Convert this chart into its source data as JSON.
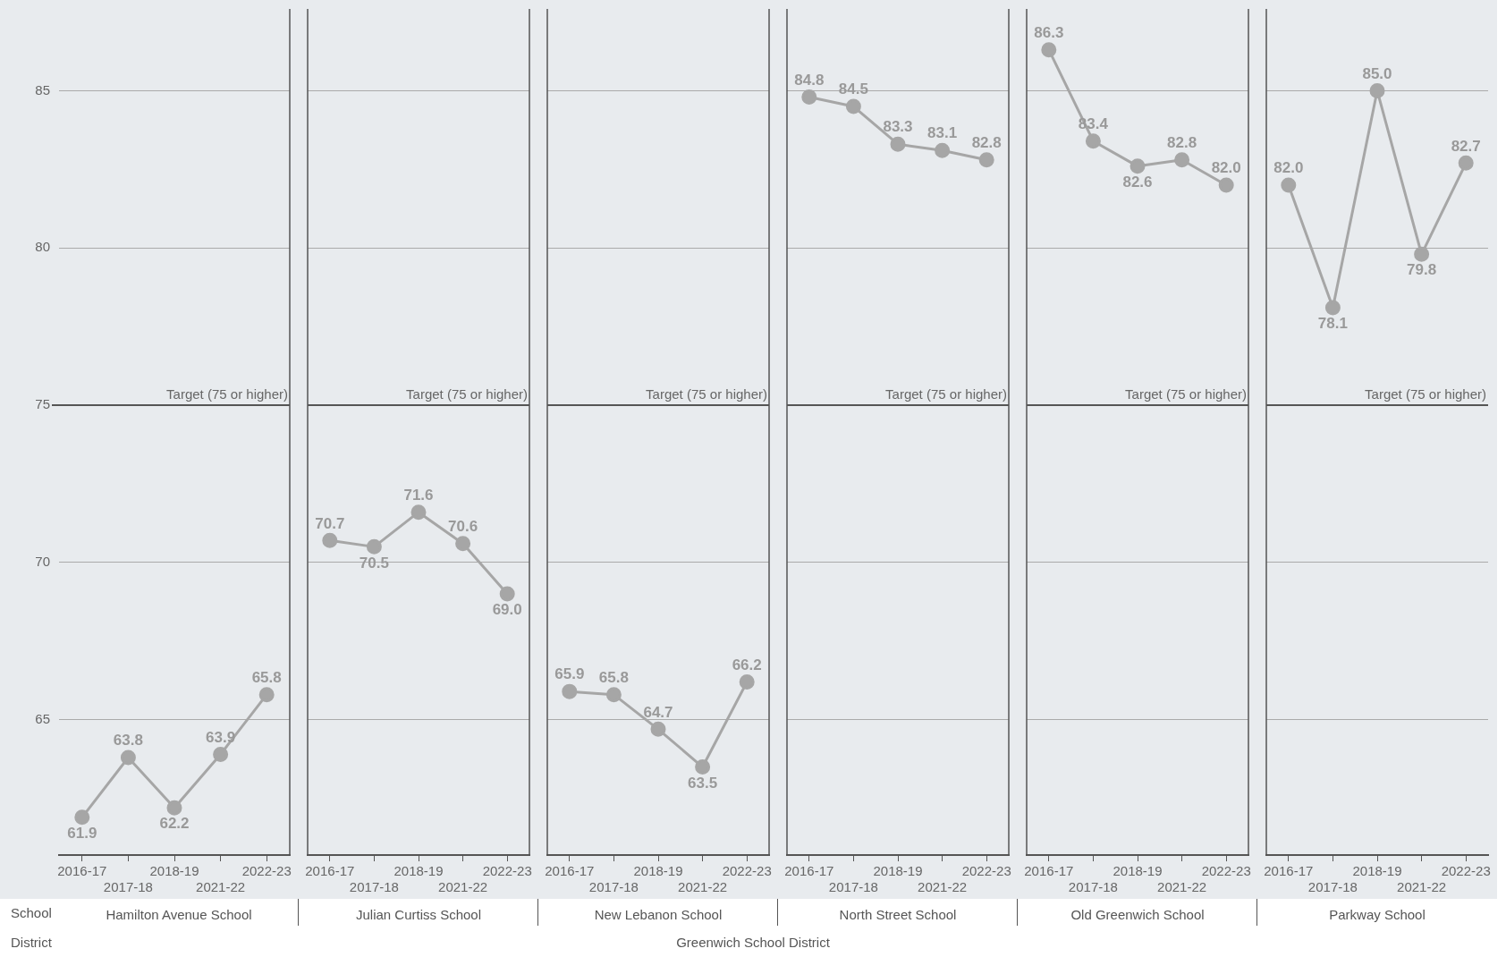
{
  "chart_data": [
    {
      "type": "line",
      "xlabel": "Hamilton Avenue School",
      "categories": [
        "2016-17",
        "2017-18",
        "2018-19",
        "2021-22",
        "2022-23"
      ],
      "series": [
        {
          "color": "#a6a6a6",
          "values": [
            61.9,
            63.8,
            62.2,
            63.9,
            65.8
          ],
          "value_labels": [
            "61.9",
            "63.8",
            "62.2",
            "63.9",
            "65.8"
          ]
        }
      ],
      "ylim": [
        60.7,
        87.6
      ],
      "yticks": [
        65,
        70,
        75,
        80,
        85
      ],
      "ref_lines": [
        {
          "axis": "y",
          "value": 75,
          "label": "Target (75 or higher)"
        }
      ],
      "grid": "y",
      "marker": "circle",
      "tick_labels": "xy",
      "annotations": [
        "School",
        "District",
        "Greenwich School District"
      ]
    },
    {
      "type": "line",
      "xlabel": "Julian Curtiss School",
      "categories": [
        "2016-17",
        "2017-18",
        "2018-19",
        "2021-22",
        "2022-23"
      ],
      "series": [
        {
          "color": "#a6a6a6",
          "values": [
            70.7,
            70.5,
            71.6,
            70.6,
            69.0
          ],
          "value_labels": [
            "70.7",
            "70.5",
            "71.6",
            "70.6",
            "69.0"
          ]
        }
      ],
      "ylim": [
        60.7,
        87.6
      ],
      "yticks": [
        65,
        70,
        75,
        80,
        85
      ],
      "ref_lines": [
        {
          "axis": "y",
          "value": 75,
          "label": "Target (75 or higher)"
        }
      ],
      "grid": "y",
      "marker": "circle",
      "tick_labels": "x"
    },
    {
      "type": "line",
      "xlabel": "New Lebanon School",
      "categories": [
        "2016-17",
        "2017-18",
        "2018-19",
        "2021-22",
        "2022-23"
      ],
      "series": [
        {
          "color": "#a6a6a6",
          "values": [
            65.9,
            65.8,
            64.7,
            63.5,
            66.2
          ],
          "value_labels": [
            "65.9",
            "65.8",
            "64.7",
            "63.5",
            "66.2"
          ]
        }
      ],
      "ylim": [
        60.7,
        87.6
      ],
      "yticks": [
        65,
        70,
        75,
        80,
        85
      ],
      "ref_lines": [
        {
          "axis": "y",
          "value": 75,
          "label": "Target (75 or higher)"
        }
      ],
      "grid": "y",
      "marker": "circle",
      "tick_labels": "x"
    },
    {
      "type": "line",
      "xlabel": "North Street School",
      "categories": [
        "2016-17",
        "2017-18",
        "2018-19",
        "2021-22",
        "2022-23"
      ],
      "series": [
        {
          "color": "#a6a6a6",
          "values": [
            84.8,
            84.5,
            83.3,
            83.1,
            82.8
          ],
          "value_labels": [
            "84.8",
            "84.5",
            "83.3",
            "83.1",
            "82.8"
          ]
        }
      ],
      "ylim": [
        60.7,
        87.6
      ],
      "yticks": [
        65,
        70,
        75,
        80,
        85
      ],
      "ref_lines": [
        {
          "axis": "y",
          "value": 75,
          "label": "Target (75 or higher)"
        }
      ],
      "grid": "y",
      "marker": "circle",
      "tick_labels": "x"
    },
    {
      "type": "line",
      "xlabel": "Old Greenwich School",
      "categories": [
        "2016-17",
        "2017-18",
        "2018-19",
        "2021-22",
        "2022-23"
      ],
      "series": [
        {
          "color": "#a6a6a6",
          "values": [
            86.3,
            83.4,
            82.6,
            82.8,
            82.0
          ],
          "value_labels": [
            "86.3",
            "83.4",
            "82.6",
            "82.8",
            "82.0"
          ]
        }
      ],
      "ylim": [
        60.7,
        87.6
      ],
      "yticks": [
        65,
        70,
        75,
        80,
        85
      ],
      "ref_lines": [
        {
          "axis": "y",
          "value": 75,
          "label": "Target (75 or higher)"
        }
      ],
      "grid": "y",
      "marker": "circle",
      "tick_labels": "x"
    },
    {
      "type": "line",
      "xlabel": "Parkway School",
      "categories": [
        "2016-17",
        "2017-18",
        "2018-19",
        "2021-22",
        "2022-23"
      ],
      "series": [
        {
          "color": "#a6a6a6",
          "values": [
            82.0,
            78.1,
            85.0,
            79.8,
            82.7
          ],
          "value_labels": [
            "82.0",
            "78.1",
            "85.0",
            "79.8",
            "82.7"
          ]
        }
      ],
      "ylim": [
        60.7,
        87.6
      ],
      "yticks": [
        65,
        70,
        75,
        80,
        85
      ],
      "ref_lines": [
        {
          "axis": "y",
          "value": 75,
          "label": "Target (75 or higher)"
        }
      ],
      "grid": "y",
      "marker": "circle",
      "tick_labels": "x"
    }
  ]
}
